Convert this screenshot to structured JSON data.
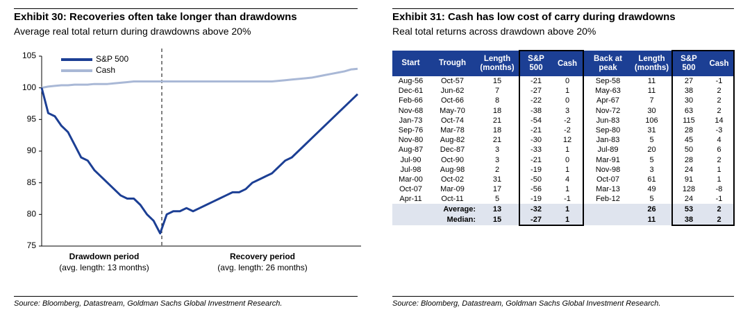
{
  "chart_data": {
    "type": "line",
    "title": "Exhibit 30: Recoveries often take longer than drawdowns",
    "subtitle": "Average real total return during drawdowns above 20%",
    "series": [
      {
        "name": "S&P 500",
        "color": "#1c3f94",
        "values": [
          100,
          96,
          95.5,
          94,
          93,
          91,
          89,
          88.5,
          87,
          86,
          85,
          84,
          83,
          82.5,
          82.5,
          81.5,
          80,
          79,
          77,
          80,
          80.5,
          80.5,
          81,
          80.5,
          81,
          81.5,
          82,
          82.5,
          83,
          83.5,
          83.5,
          84,
          85,
          85.5,
          86,
          86.5,
          87.5,
          88.5,
          89,
          90,
          91,
          92,
          93,
          94,
          95,
          96,
          97,
          98,
          99
        ]
      },
      {
        "name": "Cash",
        "color": "#a9b8d6",
        "values": [
          100,
          100.2,
          100.3,
          100.4,
          100.4,
          100.5,
          100.5,
          100.5,
          100.6,
          100.6,
          100.6,
          100.7,
          100.8,
          100.9,
          101,
          101,
          101,
          101,
          101,
          101,
          101,
          101,
          101,
          101,
          101,
          101,
          101,
          101,
          101,
          101,
          101,
          101,
          101,
          101,
          101,
          101,
          101.1,
          101.2,
          101.3,
          101.4,
          101.5,
          101.6,
          101.8,
          102,
          102.2,
          102.4,
          102.6,
          102.9,
          103
        ]
      }
    ],
    "ylim": [
      75,
      105
    ],
    "yticks": [
      75,
      80,
      85,
      90,
      95,
      100,
      105
    ],
    "grid": false,
    "legend": "upper left",
    "annotations": [
      "Drawdown period",
      "(avg. length: 13 months)",
      "Recovery period",
      "(avg. length: 26 months)"
    ],
    "source": "Source: Bloomberg, Datastream, Goldman Sachs Global Investment Research."
  },
  "exhibit_31": {
    "title": "Exhibit 31: Cash has low cost of carry during drawdowns",
    "subtitle": "Real total returns across drawdown above 20%",
    "header": [
      "Start",
      "Trough",
      "Length (months)",
      "S&P 500",
      "Cash",
      "Back at peak",
      "Length (months)",
      "S&P 500",
      "Cash"
    ],
    "rows": [
      [
        "Aug-56",
        "Oct-57",
        15,
        -21,
        0,
        "Sep-58",
        11,
        27,
        -1
      ],
      [
        "Dec-61",
        "Jun-62",
        7,
        -27,
        1,
        "May-63",
        11,
        38,
        2
      ],
      [
        "Feb-66",
        "Oct-66",
        8,
        -22,
        0,
        "Apr-67",
        7,
        30,
        2
      ],
      [
        "Nov-68",
        "May-70",
        18,
        -38,
        3,
        "Nov-72",
        30,
        63,
        2
      ],
      [
        "Jan-73",
        "Oct-74",
        21,
        -54,
        -2,
        "Jun-83",
        106,
        115,
        14
      ],
      [
        "Sep-76",
        "Mar-78",
        18,
        -21,
        -2,
        "Sep-80",
        31,
        28,
        -3
      ],
      [
        "Nov-80",
        "Aug-82",
        21,
        -30,
        12,
        "Jan-83",
        5,
        45,
        4
      ],
      [
        "Aug-87",
        "Dec-87",
        3,
        -33,
        1,
        "Jul-89",
        20,
        50,
        6
      ],
      [
        "Jul-90",
        "Oct-90",
        3,
        -21,
        0,
        "Mar-91",
        5,
        28,
        2
      ],
      [
        "Jul-98",
        "Aug-98",
        2,
        -19,
        1,
        "Nov-98",
        3,
        24,
        1
      ],
      [
        "Mar-00",
        "Oct-02",
        31,
        -50,
        4,
        "Oct-07",
        61,
        91,
        1
      ],
      [
        "Oct-07",
        "Mar-09",
        17,
        -56,
        1,
        "Mar-13",
        49,
        128,
        -8
      ],
      [
        "Apr-11",
        "Oct-11",
        5,
        -19,
        -1,
        "Feb-12",
        5,
        24,
        -1
      ]
    ],
    "summary": [
      {
        "label": "Average:",
        "values": [
          13,
          -32,
          1,
          26,
          53,
          2
        ]
      },
      {
        "label": "Median:",
        "values": [
          15,
          -27,
          1,
          11,
          38,
          2
        ]
      }
    ],
    "source": "Source: Bloomberg, Datastream, Goldman Sachs Global Investment Research."
  }
}
